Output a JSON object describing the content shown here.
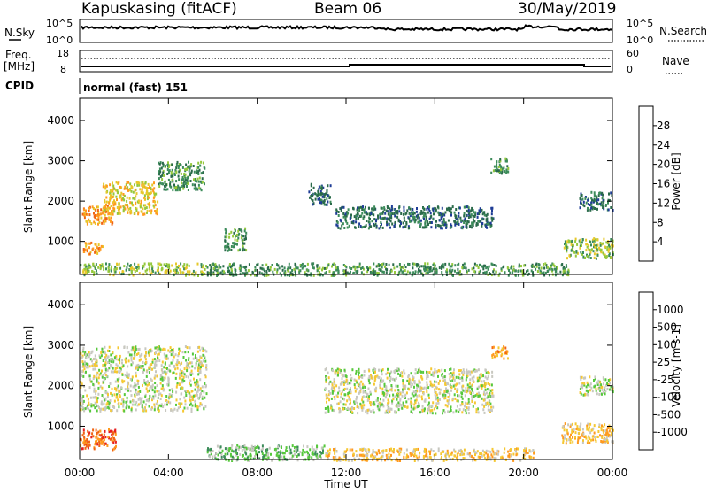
{
  "header": {
    "station": "Kapuskasing (fitACF)",
    "beam": "Beam 06",
    "date": "30/May/2019"
  },
  "summary": {
    "nsky_label": "N.Sky",
    "nsky_ticks": [
      "10^5",
      "10^0"
    ],
    "nsearch_label": "N.Search",
    "freq_label": "Freq.",
    "freq_unit": "[MHz]",
    "freq_ticks": [
      "18",
      "8"
    ],
    "nave_label": "Nave",
    "nave_ticks": [
      "60",
      "0"
    ],
    "cpid_label": "CPID",
    "cpid_value": "normal (fast) 151"
  },
  "colors": {
    "power": [
      "#0a0adc",
      "#1e3c96",
      "#2a6a4a",
      "#3c8c5a",
      "#94c83c",
      "#e6c82a",
      "#ff9a1e",
      "#f06414",
      "#e61e1e"
    ],
    "velocity": [
      "#e61e1e",
      "#f06414",
      "#ff9a1e",
      "#f5c832",
      "#c8c8c0",
      "#56c83c",
      "#3c8c5a",
      "#1e3c96",
      "#0a0adc"
    ]
  },
  "chart_data": [
    {
      "type": "heatmap",
      "title": "Power",
      "ylabel": "Slant Range [km]",
      "xlabel": "Time UT",
      "x_ticks": [
        "00:00",
        "04:00",
        "08:00",
        "12:00",
        "16:00",
        "20:00",
        "00:00"
      ],
      "x_hours": [
        0,
        4,
        8,
        12,
        16,
        20,
        24
      ],
      "y_ticks": [
        1000,
        2000,
        3000,
        4000
      ],
      "ylim": [
        180,
        4550
      ],
      "colorbar_label": "Power [dB]",
      "colorbar_ticks": [
        "4",
        "8",
        "12",
        "16",
        "20",
        "24",
        "28"
      ],
      "colorbar_range": [
        0,
        32
      ],
      "regions": [
        {
          "t0": 0.0,
          "t1": 5.7,
          "r0": 180,
          "r1": 480,
          "level": 4
        },
        {
          "t0": 0.1,
          "t1": 1.5,
          "r0": 1450,
          "r1": 1900,
          "level": 6
        },
        {
          "t0": 1.0,
          "t1": 3.5,
          "r0": 1700,
          "r1": 2500,
          "level": 5
        },
        {
          "t0": 3.5,
          "t1": 5.6,
          "r0": 2300,
          "r1": 3000,
          "level": 3
        },
        {
          "t0": 0.1,
          "t1": 1.0,
          "r0": 700,
          "r1": 1000,
          "level": 6
        },
        {
          "t0": 6.5,
          "t1": 7.5,
          "r0": 800,
          "r1": 1350,
          "level": 3
        },
        {
          "t0": 5.7,
          "t1": 22.0,
          "r0": 180,
          "r1": 480,
          "level": 3
        },
        {
          "t0": 10.3,
          "t1": 11.3,
          "r0": 1900,
          "r1": 2450,
          "level": 2
        },
        {
          "t0": 11.5,
          "t1": 18.6,
          "r0": 1350,
          "r1": 1900,
          "level": 2
        },
        {
          "t0": 18.5,
          "t1": 19.3,
          "r0": 2700,
          "r1": 3100,
          "level": 3
        },
        {
          "t0": 21.8,
          "t1": 24.0,
          "r0": 600,
          "r1": 1100,
          "level": 4
        },
        {
          "t0": 22.5,
          "t1": 24.0,
          "r0": 1800,
          "r1": 2250,
          "level": 2
        }
      ]
    },
    {
      "type": "heatmap",
      "title": "Velocity",
      "ylabel": "Slant Range [km]",
      "xlabel": "Time UT",
      "x_ticks": [
        "00:00",
        "04:00",
        "08:00",
        "12:00",
        "16:00",
        "20:00",
        "00:00"
      ],
      "x_hours": [
        0,
        4,
        8,
        12,
        16,
        20,
        24
      ],
      "y_ticks": [
        1000,
        2000,
        3000,
        4000
      ],
      "ylim": [
        180,
        4550
      ],
      "colorbar_label": "Velocity [m s-1]",
      "colorbar_ticks": [
        "-1000",
        "-500",
        "-100",
        "-25",
        "25",
        "100",
        "500",
        "1000"
      ],
      "colorbar_range": [
        -1000,
        1000
      ],
      "regions": [
        {
          "t0": 0.0,
          "t1": 1.6,
          "r0": 450,
          "r1": 950,
          "level": 1
        },
        {
          "t0": 0.0,
          "t1": 5.7,
          "r0": 1400,
          "r1": 3000,
          "level": 4
        },
        {
          "t0": 5.7,
          "t1": 11.0,
          "r0": 180,
          "r1": 560,
          "level": 5
        },
        {
          "t0": 11.0,
          "t1": 20.5,
          "r0": 180,
          "r1": 480,
          "level": 3
        },
        {
          "t0": 11.0,
          "t1": 18.6,
          "r0": 1350,
          "r1": 2450,
          "level": 4
        },
        {
          "t0": 18.5,
          "t1": 19.3,
          "r0": 2700,
          "r1": 3000,
          "level": 2
        },
        {
          "t0": 21.7,
          "t1": 24.0,
          "r0": 600,
          "r1": 1100,
          "level": 3
        },
        {
          "t0": 22.5,
          "t1": 24.0,
          "r0": 1800,
          "r1": 2250,
          "level": 4
        }
      ]
    }
  ]
}
